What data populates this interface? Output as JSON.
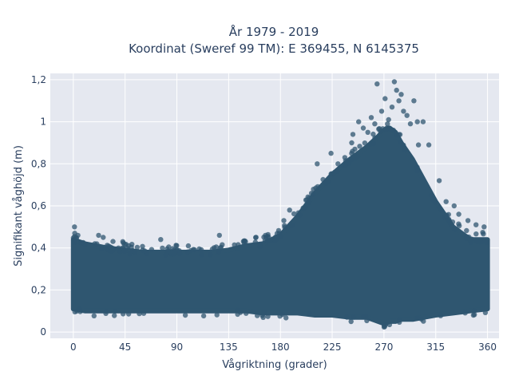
{
  "chart_data": {
    "type": "scatter",
    "title": "År 1979 - 2019",
    "subtitle": "Koordinat (Sweref 99 TM): E 369455, N 6145375",
    "xlabel": "Vågriktning (grader)",
    "ylabel": "Signifikant våghöjd (m)",
    "xlim": [
      -20,
      370
    ],
    "ylim": [
      -0.03,
      1.23
    ],
    "x_ticks": [
      0,
      45,
      90,
      135,
      180,
      225,
      270,
      315,
      360
    ],
    "x_tick_labels": [
      "0",
      "45",
      "90",
      "135",
      "180",
      "225",
      "270",
      "315",
      "360"
    ],
    "y_ticks": [
      0,
      0.2,
      0.4,
      0.6,
      0.8,
      1,
      1.2
    ],
    "y_tick_labels": [
      "0",
      "0,2",
      "0,4",
      "0,6",
      "0,8",
      "1",
      "1,2"
    ],
    "grid": true,
    "marker_color": "#2f5670",
    "plot_bg": "#e5e8f0",
    "envelope": {
      "x": [
        0,
        10,
        20,
        30,
        45,
        60,
        75,
        90,
        105,
        120,
        135,
        150,
        165,
        180,
        195,
        210,
        225,
        240,
        255,
        265,
        270,
        275,
        280,
        285,
        295,
        305,
        315,
        330,
        345,
        360
      ],
      "lower": [
        0.11,
        0.1,
        0.1,
        0.1,
        0.1,
        0.1,
        0.1,
        0.1,
        0.1,
        0.1,
        0.1,
        0.1,
        0.09,
        0.09,
        0.09,
        0.08,
        0.08,
        0.07,
        0.07,
        0.05,
        0.04,
        0.05,
        0.05,
        0.06,
        0.06,
        0.07,
        0.08,
        0.09,
        0.1,
        0.11
      ],
      "upper": [
        0.44,
        0.42,
        0.41,
        0.4,
        0.39,
        0.38,
        0.38,
        0.38,
        0.38,
        0.38,
        0.39,
        0.41,
        0.42,
        0.46,
        0.55,
        0.66,
        0.75,
        0.82,
        0.88,
        0.93,
        0.96,
        0.97,
        0.95,
        0.9,
        0.82,
        0.72,
        0.62,
        0.5,
        0.44,
        0.44
      ]
    },
    "outliers": [
      {
        "x": 1,
        "y": 0.5
      },
      {
        "x": 4,
        "y": 0.46
      },
      {
        "x": 22,
        "y": 0.46
      },
      {
        "x": 26,
        "y": 0.45
      },
      {
        "x": 43,
        "y": 0.43
      },
      {
        "x": 76,
        "y": 0.44
      },
      {
        "x": 100,
        "y": 0.41
      },
      {
        "x": 127,
        "y": 0.46
      },
      {
        "x": 167,
        "y": 0.46
      },
      {
        "x": 183,
        "y": 0.53
      },
      {
        "x": 188,
        "y": 0.58
      },
      {
        "x": 207,
        "y": 0.66
      },
      {
        "x": 212,
        "y": 0.8
      },
      {
        "x": 224,
        "y": 0.85
      },
      {
        "x": 230,
        "y": 0.8
      },
      {
        "x": 236,
        "y": 0.83
      },
      {
        "x": 243,
        "y": 0.94
      },
      {
        "x": 248,
        "y": 1.0
      },
      {
        "x": 252,
        "y": 0.97
      },
      {
        "x": 256,
        "y": 0.95
      },
      {
        "x": 259,
        "y": 1.02
      },
      {
        "x": 262,
        "y": 0.99
      },
      {
        "x": 264,
        "y": 1.18
      },
      {
        "x": 268,
        "y": 1.05
      },
      {
        "x": 271,
        "y": 1.11
      },
      {
        "x": 274,
        "y": 1.01
      },
      {
        "x": 277,
        "y": 1.07
      },
      {
        "x": 279,
        "y": 1.19
      },
      {
        "x": 281,
        "y": 1.15
      },
      {
        "x": 283,
        "y": 1.1
      },
      {
        "x": 285,
        "y": 1.13
      },
      {
        "x": 287,
        "y": 1.05
      },
      {
        "x": 290,
        "y": 1.03
      },
      {
        "x": 293,
        "y": 0.99
      },
      {
        "x": 296,
        "y": 1.1
      },
      {
        "x": 299,
        "y": 1.0
      },
      {
        "x": 304,
        "y": 1.0
      },
      {
        "x": 309,
        "y": 0.89
      },
      {
        "x": 318,
        "y": 0.72
      },
      {
        "x": 324,
        "y": 0.62
      },
      {
        "x": 331,
        "y": 0.6
      },
      {
        "x": 335,
        "y": 0.56
      },
      {
        "x": 343,
        "y": 0.53
      },
      {
        "x": 350,
        "y": 0.51
      },
      {
        "x": 357,
        "y": 0.5
      },
      {
        "x": 300,
        "y": 0.89
      },
      {
        "x": 242,
        "y": 0.9
      }
    ]
  }
}
